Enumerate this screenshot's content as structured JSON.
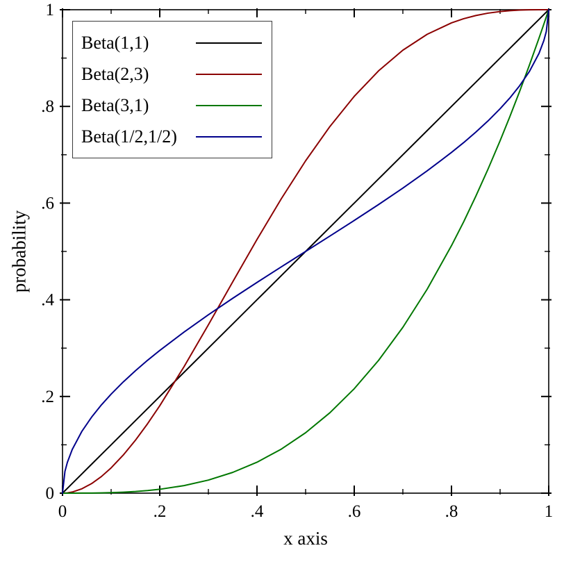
{
  "chart_data": {
    "type": "line",
    "title": "",
    "xlabel": "x axis",
    "ylabel": "probability",
    "xlim": [
      0,
      1
    ],
    "ylim": [
      0,
      1
    ],
    "grid": false,
    "legend_position": "top-left",
    "axis_color": "#000000",
    "background_color": "#ffffff",
    "x_ticks": [
      {
        "v": 0,
        "label": "0"
      },
      {
        "v": 0.2,
        "label": ".2"
      },
      {
        "v": 0.4,
        "label": ".4"
      },
      {
        "v": 0.6,
        "label": ".6"
      },
      {
        "v": 0.8,
        "label": ".8"
      },
      {
        "v": 1,
        "label": "1"
      }
    ],
    "y_ticks": [
      {
        "v": 0,
        "label": "0"
      },
      {
        "v": 0.2,
        "label": ".2"
      },
      {
        "v": 0.4,
        "label": ".4"
      },
      {
        "v": 0.6,
        "label": ".6"
      },
      {
        "v": 0.8,
        "label": ".8"
      },
      {
        "v": 1,
        "label": "1"
      }
    ],
    "x_minor_ticks": [
      0.1,
      0.3,
      0.5,
      0.7,
      0.9
    ],
    "y_minor_ticks": [
      0.1,
      0.3,
      0.5,
      0.7,
      0.9
    ],
    "x": [
      0,
      0.005,
      0.01,
      0.02,
      0.04,
      0.06,
      0.08,
      0.1,
      0.125,
      0.15,
      0.175,
      0.2,
      0.25,
      0.3,
      0.35,
      0.4,
      0.45,
      0.5,
      0.55,
      0.6,
      0.65,
      0.7,
      0.75,
      0.8,
      0.825,
      0.85,
      0.875,
      0.9,
      0.92,
      0.94,
      0.96,
      0.98,
      0.99,
      0.995,
      1
    ],
    "series": [
      {
        "name": "Beta(1,1)",
        "color": "#000000",
        "values": [
          0,
          0.005,
          0.01,
          0.02,
          0.04,
          0.06,
          0.08,
          0.1,
          0.125,
          0.15,
          0.175,
          0.2,
          0.25,
          0.3,
          0.35,
          0.4,
          0.45,
          0.5,
          0.55,
          0.6,
          0.65,
          0.7,
          0.75,
          0.8,
          0.825,
          0.85,
          0.875,
          0.9,
          0.92,
          0.94,
          0.96,
          0.98,
          0.99,
          0.995,
          1
        ]
      },
      {
        "name": "Beta(2,3)",
        "color": "#8b0000",
        "values": [
          0,
          0.0001,
          0.0006,
          0.0023,
          0.0091,
          0.0199,
          0.0344,
          0.0523,
          0.0789,
          0.1095,
          0.1437,
          0.1808,
          0.2617,
          0.3483,
          0.437,
          0.5248,
          0.609,
          0.6875,
          0.7585,
          0.8208,
          0.8735,
          0.9163,
          0.9492,
          0.9728,
          0.9814,
          0.988,
          0.9929,
          0.9963,
          0.9981,
          0.9992,
          0.9998,
          1,
          1,
          1,
          1
        ]
      },
      {
        "name": "Beta(3,1)",
        "color": "#007700",
        "values": [
          0,
          0,
          0,
          0,
          0.0001,
          0.0002,
          0.0005,
          0.001,
          0.002,
          0.0034,
          0.0054,
          0.008,
          0.0156,
          0.027,
          0.0429,
          0.064,
          0.0911,
          0.125,
          0.1664,
          0.216,
          0.2746,
          0.343,
          0.4219,
          0.512,
          0.5612,
          0.6141,
          0.6699,
          0.729,
          0.7787,
          0.8306,
          0.8847,
          0.9412,
          0.9703,
          0.9851,
          1
        ]
      },
      {
        "name": "Beta(1/2,1/2)",
        "color": "#00008b",
        "values": [
          0,
          0.0451,
          0.0638,
          0.0903,
          0.1282,
          0.1575,
          0.1826,
          0.2048,
          0.2301,
          0.2532,
          0.2749,
          0.2952,
          0.3333,
          0.369,
          0.403,
          0.4359,
          0.4681,
          0.5,
          0.5319,
          0.5641,
          0.597,
          0.631,
          0.6667,
          0.7048,
          0.7251,
          0.7468,
          0.7699,
          0.7952,
          0.8174,
          0.8425,
          0.8718,
          0.9097,
          0.9362,
          0.9549,
          1
        ]
      }
    ]
  }
}
